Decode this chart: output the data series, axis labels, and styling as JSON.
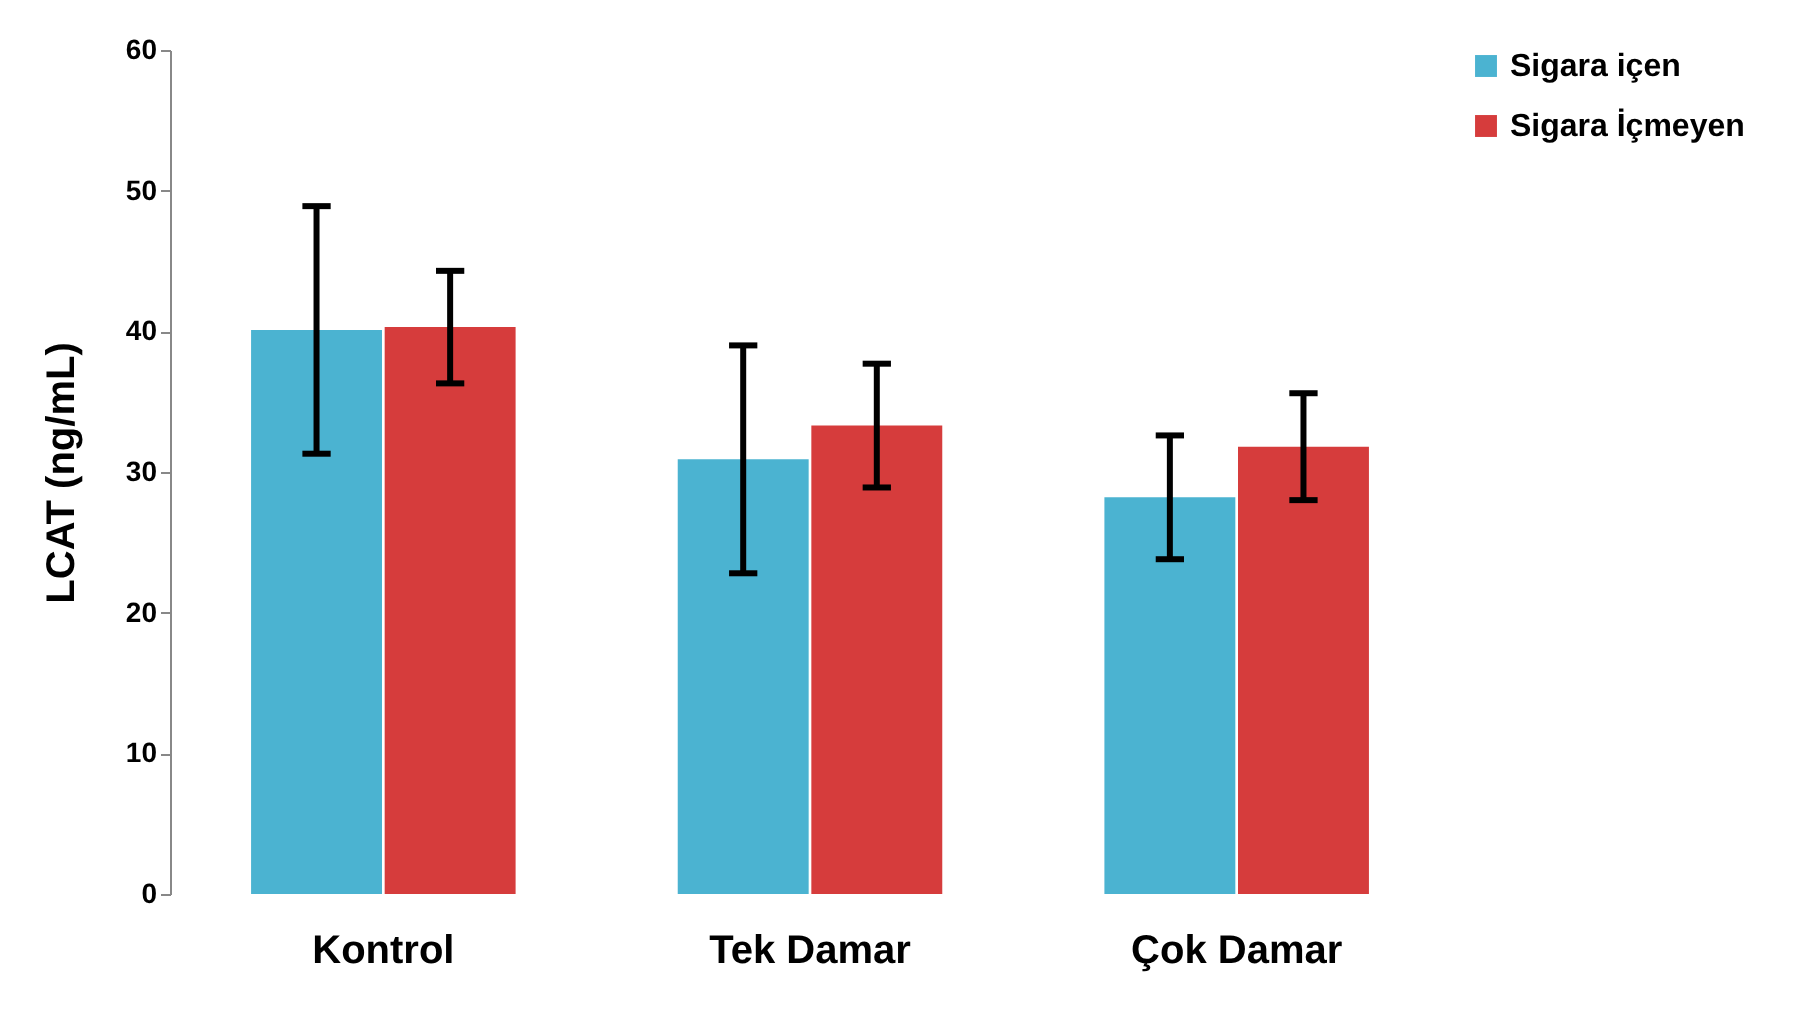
{
  "chart_data": {
    "type": "bar",
    "ylabel": "LCAT  (ng/mL)",
    "categories": [
      "Kontrol",
      "Tek Damar",
      "Çok Damar"
    ],
    "series": [
      {
        "name": "Sigara içen",
        "color": "#4bb3d1",
        "values": [
          40.1,
          30.9,
          28.2
        ],
        "errors": [
          8.8,
          8.1,
          4.4
        ]
      },
      {
        "name": "Sigara İçmeyen",
        "color": "#d63c3c",
        "values": [
          40.3,
          33.3,
          31.8
        ],
        "errors": [
          4,
          4.4,
          3.8
        ]
      }
    ],
    "ylim": [
      0,
      60
    ],
    "yticks": [
      0,
      10,
      20,
      30,
      40,
      50,
      60
    ],
    "grid": false,
    "legend": "top right"
  }
}
